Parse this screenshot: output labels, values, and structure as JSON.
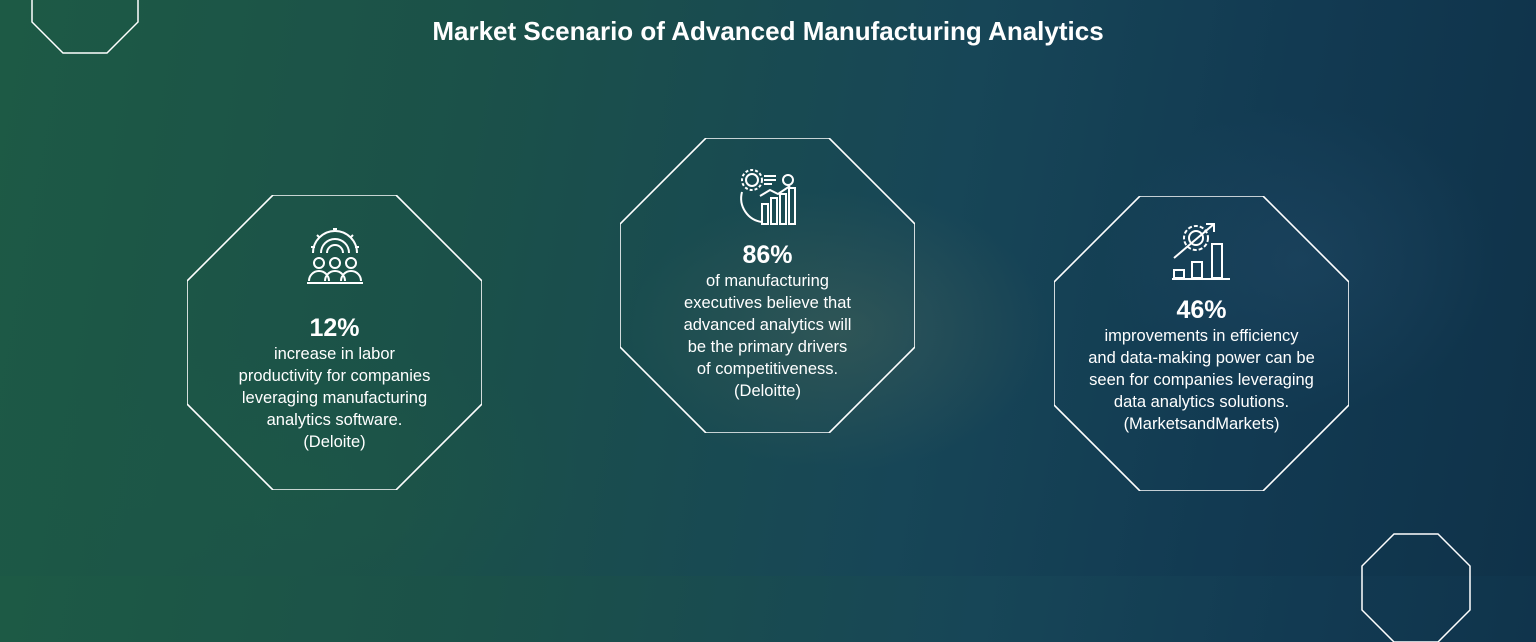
{
  "title": "Market Scenario of Advanced Manufacturing Analytics",
  "colors": {
    "outline": "#ffffff",
    "bg_left": "#1d5a45",
    "bg_right": "#0f3249"
  },
  "cards": [
    {
      "icon": "team-gear-icon",
      "value": "12%",
      "lines": [
        "increase in labor",
        "productivity for companies",
        "leveraging manufacturing",
        "analytics software.",
        "(Deloite)"
      ]
    },
    {
      "icon": "analytics-gear-chart-icon",
      "value": "86%",
      "lines": [
        "of manufacturing",
        "executives believe that",
        "advanced analytics will",
        "be the primary drivers",
        "of competitiveness.",
        "(Deloitte)"
      ]
    },
    {
      "icon": "growth-gear-chart-icon",
      "value": "46%",
      "lines": [
        "improvements in efficiency",
        "and data-making power can be",
        "seen for companies leveraging",
        "data analytics solutions.",
        "(MarketsandMarkets)"
      ]
    }
  ]
}
